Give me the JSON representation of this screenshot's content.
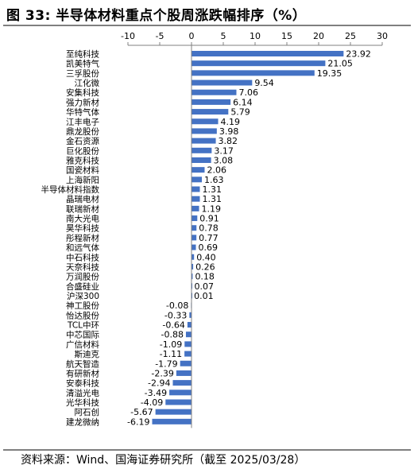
{
  "title": "图 33:  半导体材料重点个股周涨跌幅排序（%）",
  "source": "资料来源：Wind、国海证券研究所（截至 2025/03/28）",
  "colors": {
    "bar": "#4472C4",
    "rule": "#7f7f7f",
    "axis": "#808080"
  },
  "chart_data": {
    "type": "bar",
    "orientation": "horizontal",
    "title": "",
    "xlabel": "",
    "ylabel": "",
    "xlim": [
      -10,
      30
    ],
    "x_ticks": [
      -10,
      -5,
      0,
      5,
      10,
      15,
      20,
      25,
      30
    ],
    "x_tick_labels": [
      "-10",
      "-5",
      "0",
      "5",
      "10",
      "15",
      "20",
      "25",
      "30"
    ],
    "x_axis_position": "top",
    "grid": false,
    "legend": "none",
    "categories": [
      "至纯科技",
      "凯美特气",
      "三孚股份",
      "江化微",
      "安集科技",
      "强力新材",
      "华特气体",
      "江丰电子",
      "鼎龙股份",
      "金石资源",
      "巨化股份",
      "雅克科技",
      "国瓷材料",
      "上海新阳",
      "半导体材料指数",
      "晶瑞电材",
      "联瑞新材",
      "南大光电",
      "昊华科技",
      "彤程新材",
      "和远气体",
      "中石科技",
      "天奈科技",
      "万润股份",
      "合盛硅业",
      "沪深300",
      "神工股份",
      "怡达股份",
      "TCL中环",
      "中芯国际",
      "广信材料",
      "斯迪克",
      "航天智造",
      "有研新材",
      "安泰科技",
      "清溢光电",
      "光华科技",
      "阿石创",
      "建龙微纳"
    ],
    "values": [
      23.92,
      21.05,
      19.35,
      9.54,
      7.06,
      6.14,
      5.79,
      4.19,
      3.98,
      3.82,
      3.17,
      3.08,
      2.06,
      1.63,
      1.31,
      1.31,
      1.19,
      0.91,
      0.78,
      0.77,
      0.69,
      0.4,
      0.26,
      0.18,
      0.07,
      0.01,
      -0.08,
      -0.33,
      -0.64,
      -0.88,
      -1.09,
      -1.11,
      -1.79,
      -2.39,
      -2.94,
      -3.49,
      -4.09,
      -5.67,
      -6.19
    ],
    "value_labels": [
      "23.92",
      "21.05",
      "19.35",
      "9.54",
      "7.06",
      "6.14",
      "5.79",
      "4.19",
      "3.98",
      "3.82",
      "3.17",
      "3.08",
      "2.06",
      "1.63",
      "1.31",
      "1.31",
      "1.19",
      "0.91",
      "0.78",
      "0.77",
      "0.69",
      "0.40",
      "0.26",
      "0.18",
      "0.07",
      "0.01",
      "-0.08",
      "-0.33",
      "-0.64",
      "-0.88",
      "-1.09",
      "-1.11",
      "-1.79",
      "-2.39",
      "-2.94",
      "-3.49",
      "-4.09",
      "-5.67",
      "-6.19"
    ]
  }
}
